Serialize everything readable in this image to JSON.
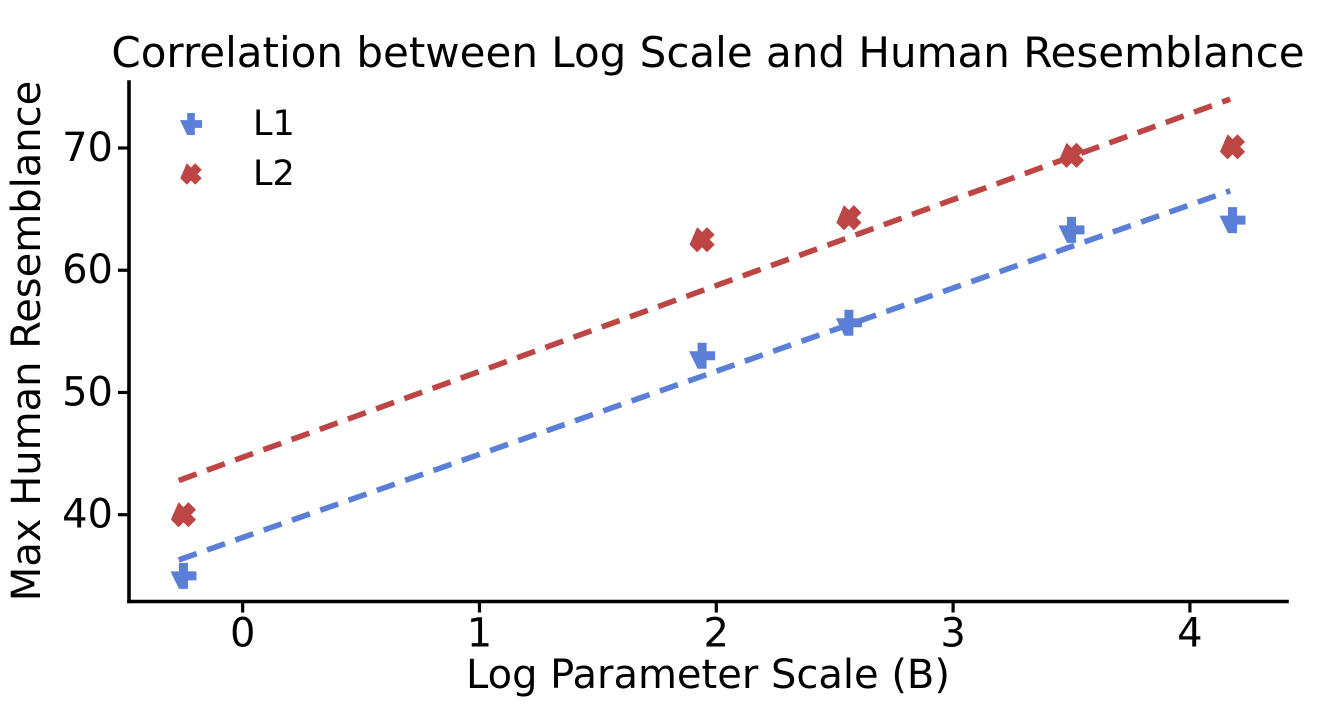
{
  "chart_data": {
    "type": "scatter",
    "title": "Correlation between Log Scale and Human Resemblance",
    "xlabel": "Log Parameter Scale (B)",
    "ylabel": "Max Human Resemblance",
    "xlim": [
      -0.48,
      4.41
    ],
    "ylim": [
      32.9,
      75.4
    ],
    "x_ticks": [
      0,
      1,
      2,
      3,
      4
    ],
    "y_ticks": [
      40,
      50,
      60,
      70
    ],
    "grid": false,
    "legend_position": "upper-left",
    "x": [
      -0.25,
      1.94,
      2.56,
      3.5,
      4.18
    ],
    "series": [
      {
        "name": "L1",
        "marker": "plus",
        "color": "#5b7ed7",
        "y": [
          35.0,
          53.0,
          55.7,
          63.3,
          64.1
        ],
        "trendline": {
          "style": "dashed",
          "x": [
            -0.27,
            4.17
          ],
          "y": [
            36.3,
            66.5
          ]
        }
      },
      {
        "name": "L2",
        "marker": "x",
        "color": "#bd4544",
        "y": [
          40.0,
          62.5,
          64.3,
          69.4,
          70.1
        ],
        "trendline": {
          "style": "dashed",
          "x": [
            -0.27,
            4.17
          ],
          "y": [
            42.8,
            74.0
          ]
        }
      }
    ]
  }
}
